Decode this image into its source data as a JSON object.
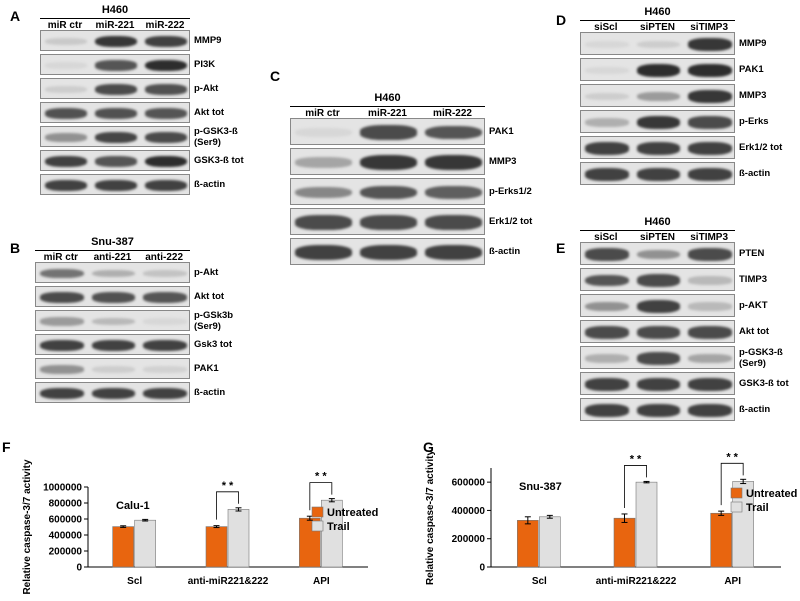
{
  "panels": {
    "A": {
      "letter": "A",
      "title": "H460",
      "lanes": [
        "miR ctr",
        "miR-221",
        "miR-222"
      ],
      "blots": [
        {
          "label": "MMP9",
          "intensity": [
            0.12,
            0.85,
            0.8
          ]
        },
        {
          "label": "PI3K",
          "intensity": [
            0.05,
            0.7,
            0.9
          ]
        },
        {
          "label": "p-Akt",
          "intensity": [
            0.1,
            0.75,
            0.72
          ]
        },
        {
          "label": "Akt tot",
          "intensity": [
            0.72,
            0.72,
            0.7
          ]
        },
        {
          "label": "p-GSK3-ß\n(Ser9)",
          "intensity": [
            0.4,
            0.78,
            0.75
          ]
        },
        {
          "label": "GSK3-ß tot",
          "intensity": [
            0.8,
            0.7,
            0.9
          ]
        },
        {
          "label": "ß-actin",
          "intensity": [
            0.8,
            0.8,
            0.8
          ]
        }
      ]
    },
    "B": {
      "letter": "B",
      "title": "Snu-387",
      "lanes": [
        "miR ctr",
        "anti-221",
        "anti-222"
      ],
      "blots": [
        {
          "label": "p-Akt",
          "intensity": [
            0.55,
            0.25,
            0.15
          ]
        },
        {
          "label": "Akt tot",
          "intensity": [
            0.75,
            0.72,
            0.7
          ]
        },
        {
          "label": "p-GSk3b\n(Ser9)",
          "intensity": [
            0.35,
            0.2,
            0.05
          ]
        },
        {
          "label": "Gsk3 tot",
          "intensity": [
            0.8,
            0.8,
            0.8
          ]
        },
        {
          "label": "PAK1",
          "intensity": [
            0.4,
            0.1,
            0.08
          ]
        },
        {
          "label": "ß-actin",
          "intensity": [
            0.8,
            0.8,
            0.8
          ]
        }
      ]
    },
    "C": {
      "letter": "C",
      "title": "H460",
      "lanes": [
        "miR ctr",
        "miR-221",
        "miR-222"
      ],
      "blots": [
        {
          "label": "PAK1",
          "intensity": [
            0.05,
            0.75,
            0.7
          ]
        },
        {
          "label": "MMP3",
          "intensity": [
            0.3,
            0.85,
            0.85
          ]
        },
        {
          "label": "p-Erks1/2",
          "intensity": [
            0.45,
            0.7,
            0.65
          ]
        },
        {
          "label": "Erk1/2 tot",
          "intensity": [
            0.75,
            0.75,
            0.75
          ]
        },
        {
          "label": "ß-actin",
          "intensity": [
            0.8,
            0.8,
            0.8
          ]
        }
      ]
    },
    "D": {
      "letter": "D",
      "title": "H460",
      "lanes": [
        "siScl",
        "siPTEN",
        "siTIMP3"
      ],
      "blots": [
        {
          "label": "MMP9",
          "intensity": [
            0.05,
            0.1,
            0.85
          ]
        },
        {
          "label": "PAK1",
          "intensity": [
            0.05,
            0.9,
            0.9
          ]
        },
        {
          "label": "MMP3",
          "intensity": [
            0.1,
            0.35,
            0.85
          ]
        },
        {
          "label": "p-Erks",
          "intensity": [
            0.25,
            0.85,
            0.75
          ]
        },
        {
          "label": "Erk1/2  tot",
          "intensity": [
            0.8,
            0.8,
            0.8
          ]
        },
        {
          "label": "ß-actin",
          "intensity": [
            0.8,
            0.8,
            0.8
          ]
        }
      ]
    },
    "E": {
      "letter": "E",
      "title": "H460",
      "lanes": [
        "siScl",
        "siPTEN",
        "siTIMP3"
      ],
      "blots": [
        {
          "label": "PTEN",
          "intensity": [
            0.75,
            0.4,
            0.75
          ]
        },
        {
          "label": "TIMP3",
          "intensity": [
            0.7,
            0.75,
            0.2
          ]
        },
        {
          "label": "p-AKT",
          "intensity": [
            0.4,
            0.8,
            0.2
          ]
        },
        {
          "label": "Akt tot",
          "intensity": [
            0.75,
            0.75,
            0.75
          ]
        },
        {
          "label": "p-GSK3-ß\n(Ser9)",
          "intensity": [
            0.25,
            0.75,
            0.3
          ]
        },
        {
          "label": "GSK3-ß tot",
          "intensity": [
            0.8,
            0.8,
            0.8
          ]
        },
        {
          "label": "ß-actin",
          "intensity": [
            0.8,
            0.8,
            0.8
          ]
        }
      ]
    }
  },
  "chart_data": [
    {
      "panel_letter": "F",
      "type": "bar",
      "title": "Calu-1",
      "ylabel": "Relative caspase-3/7 activity",
      "categories": [
        "Scl",
        "anti-miR221&222",
        "API"
      ],
      "ylim": [
        0,
        1000000
      ],
      "yticks": [
        "0",
        "200000",
        "400000",
        "600000",
        "800000",
        "1000000"
      ],
      "ytick_values": [
        0,
        200000,
        400000,
        600000,
        800000,
        1000000
      ],
      "series": [
        {
          "name": "Untreated",
          "color": "#e8650f",
          "values": [
            505000,
            505000,
            610000
          ],
          "errors": [
            10000,
            12000,
            25000
          ]
        },
        {
          "name": "Trail",
          "color": "#e0e0e0",
          "values": [
            585000,
            720000,
            835000
          ],
          "errors": [
            10000,
            20000,
            20000
          ]
        }
      ],
      "significance": [
        "",
        "* *",
        "* *"
      ],
      "legend": "right"
    },
    {
      "panel_letter": "G",
      "type": "bar",
      "title": "Snu-387",
      "ylabel": "Relative caspase-3/7 activity",
      "categories": [
        "Scl",
        "anti-miR221&222",
        "API"
      ],
      "ylim": [
        0,
        700000
      ],
      "yticks": [
        "0",
        "200000",
        "400000",
        "600000"
      ],
      "ytick_values": [
        0,
        200000,
        400000,
        600000
      ],
      "series": [
        {
          "name": "Untreated",
          "color": "#e8650f",
          "values": [
            330000,
            345000,
            380000
          ],
          "errors": [
            25000,
            30000,
            15000
          ]
        },
        {
          "name": "Trail",
          "color": "#e0e0e0",
          "values": [
            355000,
            600000,
            605000
          ],
          "errors": [
            10000,
            5000,
            15000
          ]
        }
      ],
      "significance": [
        "",
        "* *",
        "* *"
      ],
      "legend": "right"
    }
  ]
}
